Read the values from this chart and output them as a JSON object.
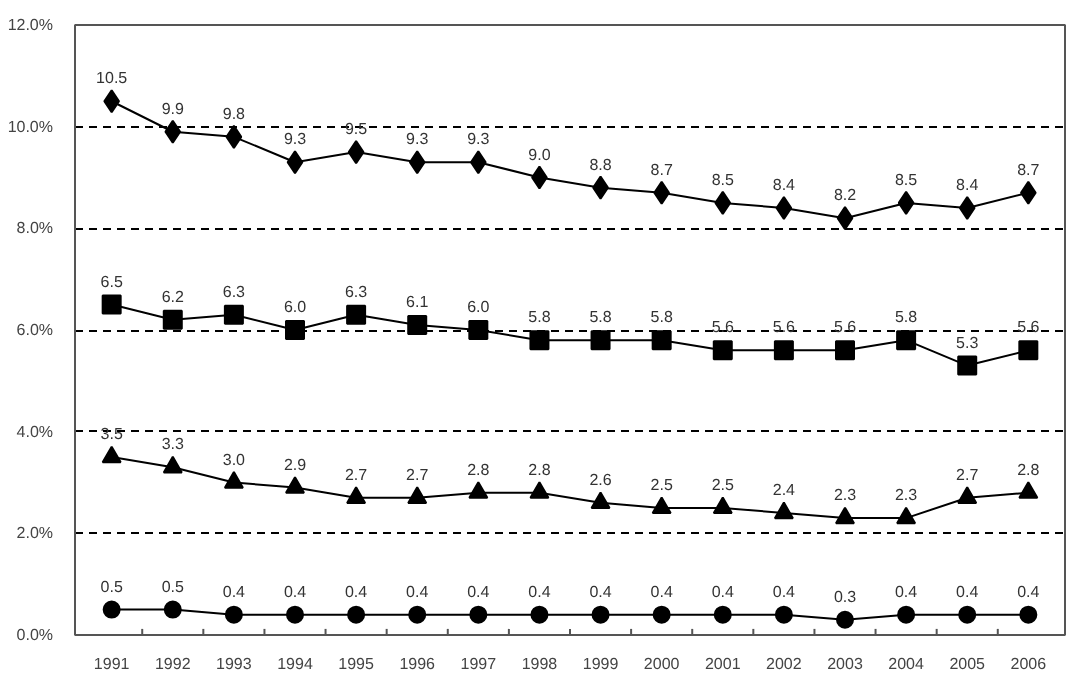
{
  "chart_data": {
    "type": "line",
    "categories": [
      "1991",
      "1992",
      "1993",
      "1994",
      "1995",
      "1996",
      "1997",
      "1998",
      "1999",
      "2000",
      "2001",
      "2002",
      "2003",
      "2004",
      "2005",
      "2006"
    ],
    "series": [
      {
        "color": "#000000",
        "marker": "diamond",
        "values": [
          10.5,
          9.9,
          9.8,
          9.3,
          9.5,
          9.3,
          9.3,
          9.0,
          8.8,
          8.7,
          8.5,
          8.4,
          8.2,
          8.5,
          8.4,
          8.7
        ],
        "value_labels": [
          "10.5",
          "9.9",
          "9.8",
          "9.3",
          "9.5",
          "9.3",
          "9.3",
          "9.0",
          "8.8",
          "8.7",
          "8.5",
          "8.4",
          "8.2",
          "8.5",
          "8.4",
          "8.7"
        ]
      },
      {
        "color": "#000000",
        "marker": "square",
        "values": [
          6.5,
          6.2,
          6.3,
          6.0,
          6.3,
          6.1,
          6.0,
          5.8,
          5.8,
          5.8,
          5.6,
          5.6,
          5.6,
          5.8,
          5.3,
          5.6
        ],
        "value_labels": [
          "6.5",
          "6.2",
          "6.3",
          "6.0",
          "6.3",
          "6.1",
          "6.0",
          "5.8",
          "5.8",
          "5.8",
          "5.6",
          "5.6",
          "5.6",
          "5.8",
          "5.3",
          "5.6"
        ]
      },
      {
        "color": "#000000",
        "marker": "triangle",
        "values": [
          3.5,
          3.3,
          3.0,
          2.9,
          2.7,
          2.7,
          2.8,
          2.8,
          2.6,
          2.5,
          2.5,
          2.4,
          2.3,
          2.3,
          2.7,
          2.8
        ],
        "value_labels": [
          "3.5",
          "3.3",
          "3.0",
          "2.9",
          "2.7",
          "2.7",
          "2.8",
          "2.8",
          "2.6",
          "2.5",
          "2.5",
          "2.4",
          "2.3",
          "2.3",
          "2.7",
          "2.8"
        ]
      },
      {
        "color": "#000000",
        "marker": "circle",
        "values": [
          0.5,
          0.5,
          0.4,
          0.4,
          0.4,
          0.4,
          0.4,
          0.4,
          0.4,
          0.4,
          0.4,
          0.4,
          0.3,
          0.4,
          0.4,
          0.4
        ],
        "value_labels": [
          "0.5",
          "0.5",
          "0.4",
          "0.4",
          "0.4",
          "0.4",
          "0.4",
          "0.4",
          "0.4",
          "0.4",
          "0.4",
          "0.4",
          "0.3",
          "0.4",
          "0.4",
          "0.4"
        ]
      }
    ],
    "ylim": [
      0,
      12
    ],
    "yticks": [
      {
        "value": 0,
        "label": "0.0%"
      },
      {
        "value": 2,
        "label": "2.0%"
      },
      {
        "value": 4,
        "label": "4.0%"
      },
      {
        "value": 6,
        "label": "6.0%"
      },
      {
        "value": 8,
        "label": "8.0%"
      },
      {
        "value": 10,
        "label": "10.0%"
      },
      {
        "value": 12,
        "label": "12.0%"
      }
    ],
    "grid": "y",
    "line_style": "solid"
  }
}
